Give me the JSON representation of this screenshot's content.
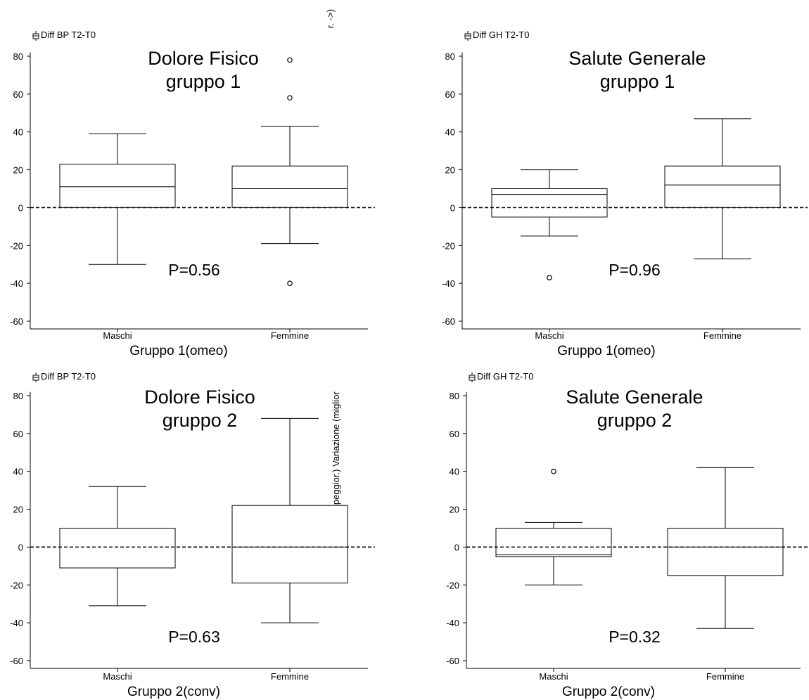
{
  "figure": {
    "rotated_fragment_top": "r. ->)",
    "rotated_fragment_mid": "(<- peggior.) Variazione (miglior"
  },
  "chart_data": [
    {
      "type": "box",
      "title": "Dolore Fisico\ngruppo 1",
      "variable_label": "Diff BP T2-T0",
      "xlabel": "Gruppo 1(omeo)",
      "ylabel": "",
      "ylim": [
        -65,
        82
      ],
      "y_ticks": [
        80,
        60,
        40,
        20,
        0,
        -20,
        -40,
        -60
      ],
      "reference_line": 0,
      "annotation": "P=0.56",
      "categories": [
        "Maschi",
        "Femmine"
      ],
      "boxes": [
        {
          "category": "Maschi",
          "whisker_low": -30,
          "q1": 0,
          "median": 11,
          "q3": 23,
          "whisker_high": 39,
          "outliers": []
        },
        {
          "category": "Femmine",
          "whisker_low": -19,
          "q1": 0,
          "median": 10,
          "q3": 22,
          "whisker_high": 43,
          "outliers": [
            78,
            58,
            -40
          ]
        }
      ]
    },
    {
      "type": "box",
      "title": "Salute Generale\ngruppo 1",
      "variable_label": "Diff GH T2-T0",
      "xlabel": "Gruppo 1(omeo)",
      "ylabel": "",
      "ylim": [
        -65,
        82
      ],
      "y_ticks": [
        80,
        60,
        40,
        20,
        0,
        -20,
        -40,
        -60
      ],
      "reference_line": 0,
      "annotation": "P=0.96",
      "categories": [
        "Maschi",
        "Femmine"
      ],
      "boxes": [
        {
          "category": "Maschi",
          "whisker_low": -15,
          "q1": -5,
          "median": 7,
          "q3": 10,
          "whisker_high": 20,
          "outliers": [
            -37
          ]
        },
        {
          "category": "Femmine",
          "whisker_low": -27,
          "q1": 0,
          "median": 12,
          "q3": 22,
          "whisker_high": 47,
          "outliers": []
        }
      ]
    },
    {
      "type": "box",
      "title": "Dolore Fisico\ngruppo 2",
      "variable_label": "Diff BP T2-T0",
      "xlabel": "Gruppo 2(conv)",
      "ylabel": "",
      "ylim": [
        -65,
        82
      ],
      "y_ticks": [
        80,
        60,
        40,
        20,
        0,
        -20,
        -40,
        -60
      ],
      "reference_line": 0,
      "annotation": "P=0.63",
      "categories": [
        "Maschi",
        "Femmine"
      ],
      "boxes": [
        {
          "category": "Maschi",
          "whisker_low": -31,
          "q1": -11,
          "median": 10,
          "q3": 10,
          "whisker_high": 32,
          "outliers": []
        },
        {
          "category": "Femmine",
          "whisker_low": -40,
          "q1": -19,
          "median": 0,
          "q3": 22,
          "whisker_high": 68,
          "outliers": []
        }
      ]
    },
    {
      "type": "box",
      "title": "Salute Generale\ngruppo 2",
      "variable_label": "Diff GH T2-T0",
      "xlabel": "Gruppo 2(conv)",
      "ylabel": "",
      "ylim": [
        -65,
        82
      ],
      "y_ticks": [
        80,
        60,
        40,
        20,
        0,
        -20,
        -40,
        -60
      ],
      "reference_line": 0,
      "annotation": "P=0.32",
      "categories": [
        "Maschi",
        "Femmine"
      ],
      "boxes": [
        {
          "category": "Maschi",
          "whisker_low": -20,
          "q1": -5,
          "median": -4,
          "q3": 10,
          "whisker_high": 13,
          "outliers": [
            40
          ]
        },
        {
          "category": "Femmine",
          "whisker_low": -43,
          "q1": -15,
          "median": 0,
          "q3": 10,
          "whisker_high": 42,
          "outliers": []
        }
      ]
    }
  ]
}
